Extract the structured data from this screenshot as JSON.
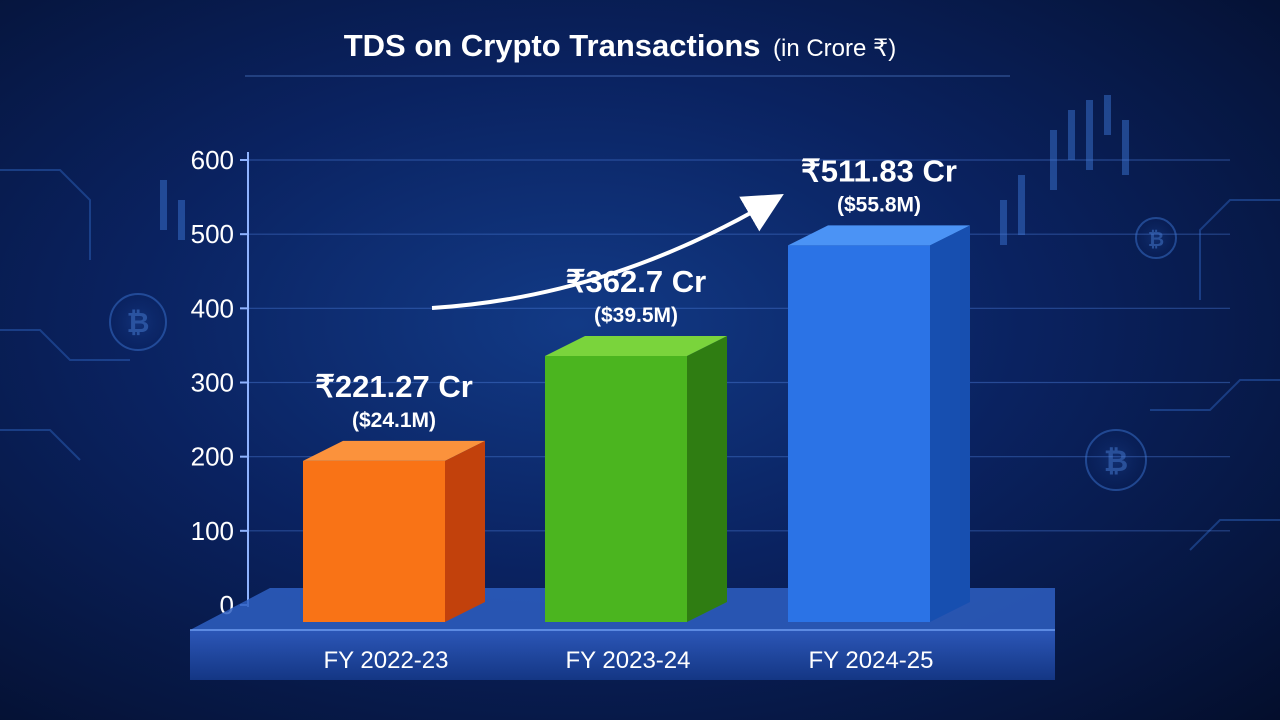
{
  "chart_data": {
    "type": "bar",
    "title": "TDS on Crypto Transactions",
    "title_unit": "(in Crore ₹)",
    "categories": [
      "FY 2022-23",
      "FY 2023-24",
      "FY 2024-25"
    ],
    "values": [
      221.27,
      362.7,
      511.83
    ],
    "value_labels": [
      "₹221.27 Cr",
      "₹362.7 Cr",
      "₹511.83 Cr"
    ],
    "usd_labels": [
      "($24.1M)",
      "($39.5M)",
      "($55.8M)"
    ],
    "yticks": [
      "0",
      "100",
      "200",
      "300",
      "400",
      "500",
      "600"
    ],
    "ylim": [
      0,
      600
    ],
    "grid": true,
    "bar_colors": [
      {
        "front": "#f97316",
        "side": "#c2410c",
        "top": "#fb923c"
      },
      {
        "front": "#4bb51f",
        "side": "#2f7d12",
        "top": "#7ad43c"
      },
      {
        "front": "#2b73e6",
        "side": "#174fb0",
        "top": "#4b93f5"
      }
    ],
    "trend_arrow": true
  }
}
